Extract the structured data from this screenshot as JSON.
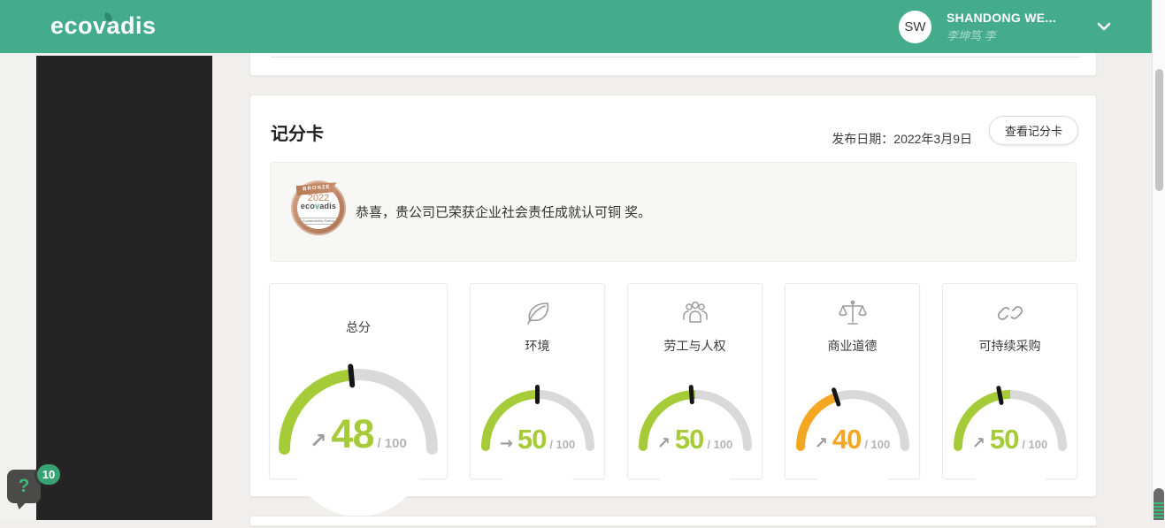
{
  "colors": {
    "brand_green": "#44ab8b",
    "brand_green_dark": "#2c8a6d",
    "gauge_green": "#a6cb39",
    "gauge_orange": "#f5a623",
    "arc_track": "#d9d9d9",
    "needle": "#151515",
    "help_green": "#3cb878",
    "bronze": "#bf8a67"
  },
  "header": {
    "logo": "ecovadis",
    "user": {
      "initials": "SW",
      "name": "SHANDONG WE...",
      "subtitle": "李坤笃 李"
    }
  },
  "scorecard": {
    "title": "记分卡",
    "publish_date": "发布日期：2022年3月9日",
    "view_button": "查看记分卡",
    "banner": {
      "message": "恭喜，贵公司已荣获企业社会责任成就认可铜 奖。",
      "medal": {
        "tier": "BRONZE",
        "year": "2022",
        "brand": "ecovadis",
        "sub": "Sustainability Rating"
      }
    }
  },
  "chart_data": {
    "type": "gauge",
    "max": 100,
    "max_label": "/ 100",
    "axis_range": [
      0,
      100
    ],
    "gauges": [
      {
        "label": "总分",
        "value": 48,
        "arrow": "↗",
        "trend": "up",
        "color": "#a6cb39",
        "icon": null,
        "needle_fraction": 0.47,
        "primary": true
      },
      {
        "label": "环境",
        "value": 50,
        "arrow": "→",
        "trend": "flat",
        "color": "#a6cb39",
        "icon": "leaf",
        "needle_fraction": 0.5,
        "primary": false
      },
      {
        "label": "劳工与人权",
        "value": 50,
        "arrow": "↗",
        "trend": "up",
        "color": "#a6cb39",
        "icon": "people",
        "needle_fraction": 0.48,
        "primary": false
      },
      {
        "label": "商业道德",
        "value": 40,
        "arrow": "↗",
        "trend": "up",
        "color": "#f5a623",
        "icon": "scales",
        "needle_fraction": 0.4,
        "primary": false
      },
      {
        "label": "可持续采购",
        "value": 50,
        "arrow": "↗",
        "trend": "up",
        "color": "#a6cb39",
        "icon": "link",
        "needle_fraction": 0.44,
        "primary": false
      }
    ]
  },
  "help": {
    "icon": "?",
    "badge": "10"
  }
}
